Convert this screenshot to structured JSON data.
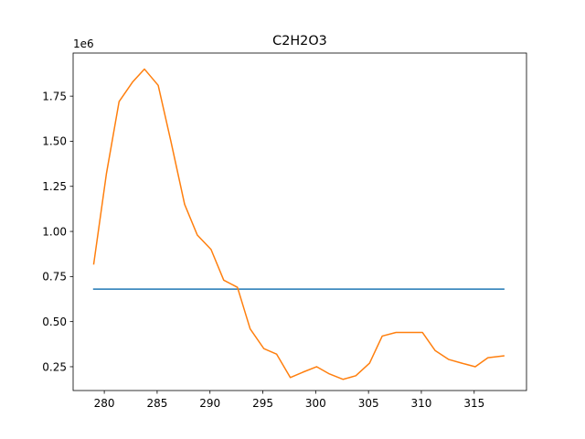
{
  "chart_data": {
    "type": "line",
    "title": "C2H2O3",
    "xlabel": "",
    "ylabel": "",
    "y_offset_label": "1e6",
    "xlim": [
      277.05,
      319.95
    ],
    "ylim": [
      0.118,
      1.989
    ],
    "x_ticks": [
      280,
      285,
      290,
      295,
      300,
      305,
      310,
      315
    ],
    "y_ticks": [
      0.25,
      0.5,
      0.75,
      1.0,
      1.25,
      1.5,
      1.75
    ],
    "y_tick_labels": [
      "0.25",
      "0.50",
      "0.75",
      "1.00",
      "1.25",
      "1.50",
      "1.75"
    ],
    "grid": false,
    "series": [
      {
        "color": "#1f77b4",
        "x": [
          279.0,
          317.8
        ],
        "y": [
          0.68,
          0.68
        ]
      },
      {
        "color": "#ff7f0e",
        "x": [
          279.0,
          280.2,
          281.4,
          282.7,
          283.8,
          285.1,
          286.3,
          287.6,
          288.8,
          290.1,
          291.3,
          292.6,
          293.8,
          295.1,
          296.3,
          297.6,
          298.8,
          300.1,
          301.3,
          302.6,
          303.8,
          305.1,
          306.3,
          307.6,
          308.8,
          310.1,
          311.3,
          312.6,
          313.8,
          315.1,
          316.3,
          317.8
        ],
        "y": [
          0.82,
          1.32,
          1.72,
          1.83,
          1.9,
          1.81,
          1.5,
          1.15,
          0.98,
          0.9,
          0.73,
          0.69,
          0.46,
          0.35,
          0.32,
          0.19,
          0.22,
          0.25,
          0.21,
          0.18,
          0.2,
          0.27,
          0.42,
          0.44,
          0.44,
          0.44,
          0.34,
          0.29,
          0.27,
          0.25,
          0.3,
          0.31
        ]
      }
    ]
  }
}
